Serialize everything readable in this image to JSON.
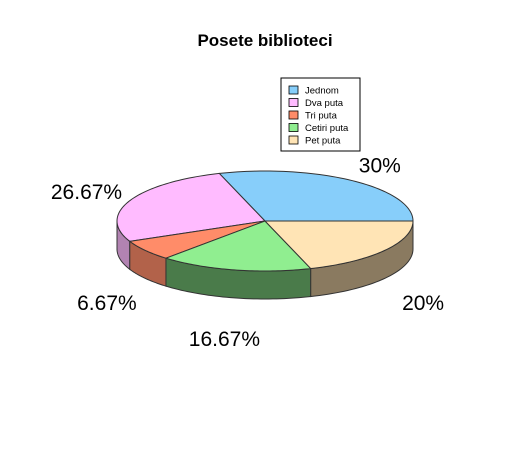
{
  "chart_data": {
    "type": "pie",
    "title": "Posete biblioteci",
    "three_d": true,
    "legend_position": "top-right",
    "categories": [
      "Jednom",
      "Dva puta",
      "Tri puta",
      "Cetiri puta",
      "Pet puta"
    ],
    "values": [
      30,
      26.67,
      6.67,
      16.67,
      20
    ],
    "labels": [
      "30%",
      "26.67%",
      "6.67%",
      "16.67%",
      "20%"
    ],
    "colors": [
      "#87cefa",
      "#ffbbff",
      "#ff8c69",
      "#90ee90",
      "#ffe4b5"
    ],
    "side_colors": [
      "#5f90af",
      "#b283b2",
      "#b2624a",
      "#4a7b4a",
      "#8a7a60"
    ]
  }
}
